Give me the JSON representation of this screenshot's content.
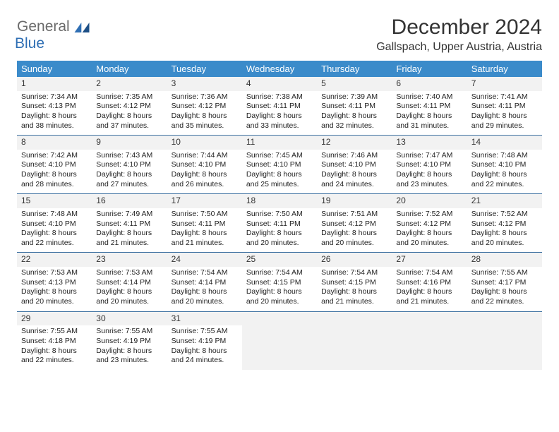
{
  "brand": {
    "part1": "General",
    "part2": "Blue"
  },
  "title": "December 2024",
  "location": "Gallspach, Upper Austria, Austria",
  "colors": {
    "header_bg": "#3b8bca",
    "header_text": "#ffffff",
    "row_border": "#3b6fa0",
    "daynum_bg": "#f2f2f2",
    "brand_gray": "#6b6b6b",
    "brand_blue": "#2f6fb4"
  },
  "weekdays": [
    "Sunday",
    "Monday",
    "Tuesday",
    "Wednesday",
    "Thursday",
    "Friday",
    "Saturday"
  ],
  "weeks": [
    [
      {
        "n": "1",
        "sr": "Sunrise: 7:34 AM",
        "ss": "Sunset: 4:13 PM",
        "d1": "Daylight: 8 hours",
        "d2": "and 38 minutes."
      },
      {
        "n": "2",
        "sr": "Sunrise: 7:35 AM",
        "ss": "Sunset: 4:12 PM",
        "d1": "Daylight: 8 hours",
        "d2": "and 37 minutes."
      },
      {
        "n": "3",
        "sr": "Sunrise: 7:36 AM",
        "ss": "Sunset: 4:12 PM",
        "d1": "Daylight: 8 hours",
        "d2": "and 35 minutes."
      },
      {
        "n": "4",
        "sr": "Sunrise: 7:38 AM",
        "ss": "Sunset: 4:11 PM",
        "d1": "Daylight: 8 hours",
        "d2": "and 33 minutes."
      },
      {
        "n": "5",
        "sr": "Sunrise: 7:39 AM",
        "ss": "Sunset: 4:11 PM",
        "d1": "Daylight: 8 hours",
        "d2": "and 32 minutes."
      },
      {
        "n": "6",
        "sr": "Sunrise: 7:40 AM",
        "ss": "Sunset: 4:11 PM",
        "d1": "Daylight: 8 hours",
        "d2": "and 31 minutes."
      },
      {
        "n": "7",
        "sr": "Sunrise: 7:41 AM",
        "ss": "Sunset: 4:11 PM",
        "d1": "Daylight: 8 hours",
        "d2": "and 29 minutes."
      }
    ],
    [
      {
        "n": "8",
        "sr": "Sunrise: 7:42 AM",
        "ss": "Sunset: 4:10 PM",
        "d1": "Daylight: 8 hours",
        "d2": "and 28 minutes."
      },
      {
        "n": "9",
        "sr": "Sunrise: 7:43 AM",
        "ss": "Sunset: 4:10 PM",
        "d1": "Daylight: 8 hours",
        "d2": "and 27 minutes."
      },
      {
        "n": "10",
        "sr": "Sunrise: 7:44 AM",
        "ss": "Sunset: 4:10 PM",
        "d1": "Daylight: 8 hours",
        "d2": "and 26 minutes."
      },
      {
        "n": "11",
        "sr": "Sunrise: 7:45 AM",
        "ss": "Sunset: 4:10 PM",
        "d1": "Daylight: 8 hours",
        "d2": "and 25 minutes."
      },
      {
        "n": "12",
        "sr": "Sunrise: 7:46 AM",
        "ss": "Sunset: 4:10 PM",
        "d1": "Daylight: 8 hours",
        "d2": "and 24 minutes."
      },
      {
        "n": "13",
        "sr": "Sunrise: 7:47 AM",
        "ss": "Sunset: 4:10 PM",
        "d1": "Daylight: 8 hours",
        "d2": "and 23 minutes."
      },
      {
        "n": "14",
        "sr": "Sunrise: 7:48 AM",
        "ss": "Sunset: 4:10 PM",
        "d1": "Daylight: 8 hours",
        "d2": "and 22 minutes."
      }
    ],
    [
      {
        "n": "15",
        "sr": "Sunrise: 7:48 AM",
        "ss": "Sunset: 4:10 PM",
        "d1": "Daylight: 8 hours",
        "d2": "and 22 minutes."
      },
      {
        "n": "16",
        "sr": "Sunrise: 7:49 AM",
        "ss": "Sunset: 4:11 PM",
        "d1": "Daylight: 8 hours",
        "d2": "and 21 minutes."
      },
      {
        "n": "17",
        "sr": "Sunrise: 7:50 AM",
        "ss": "Sunset: 4:11 PM",
        "d1": "Daylight: 8 hours",
        "d2": "and 21 minutes."
      },
      {
        "n": "18",
        "sr": "Sunrise: 7:50 AM",
        "ss": "Sunset: 4:11 PM",
        "d1": "Daylight: 8 hours",
        "d2": "and 20 minutes."
      },
      {
        "n": "19",
        "sr": "Sunrise: 7:51 AM",
        "ss": "Sunset: 4:12 PM",
        "d1": "Daylight: 8 hours",
        "d2": "and 20 minutes."
      },
      {
        "n": "20",
        "sr": "Sunrise: 7:52 AM",
        "ss": "Sunset: 4:12 PM",
        "d1": "Daylight: 8 hours",
        "d2": "and 20 minutes."
      },
      {
        "n": "21",
        "sr": "Sunrise: 7:52 AM",
        "ss": "Sunset: 4:12 PM",
        "d1": "Daylight: 8 hours",
        "d2": "and 20 minutes."
      }
    ],
    [
      {
        "n": "22",
        "sr": "Sunrise: 7:53 AM",
        "ss": "Sunset: 4:13 PM",
        "d1": "Daylight: 8 hours",
        "d2": "and 20 minutes."
      },
      {
        "n": "23",
        "sr": "Sunrise: 7:53 AM",
        "ss": "Sunset: 4:14 PM",
        "d1": "Daylight: 8 hours",
        "d2": "and 20 minutes."
      },
      {
        "n": "24",
        "sr": "Sunrise: 7:54 AM",
        "ss": "Sunset: 4:14 PM",
        "d1": "Daylight: 8 hours",
        "d2": "and 20 minutes."
      },
      {
        "n": "25",
        "sr": "Sunrise: 7:54 AM",
        "ss": "Sunset: 4:15 PM",
        "d1": "Daylight: 8 hours",
        "d2": "and 20 minutes."
      },
      {
        "n": "26",
        "sr": "Sunrise: 7:54 AM",
        "ss": "Sunset: 4:15 PM",
        "d1": "Daylight: 8 hours",
        "d2": "and 21 minutes."
      },
      {
        "n": "27",
        "sr": "Sunrise: 7:54 AM",
        "ss": "Sunset: 4:16 PM",
        "d1": "Daylight: 8 hours",
        "d2": "and 21 minutes."
      },
      {
        "n": "28",
        "sr": "Sunrise: 7:55 AM",
        "ss": "Sunset: 4:17 PM",
        "d1": "Daylight: 8 hours",
        "d2": "and 22 minutes."
      }
    ],
    [
      {
        "n": "29",
        "sr": "Sunrise: 7:55 AM",
        "ss": "Sunset: 4:18 PM",
        "d1": "Daylight: 8 hours",
        "d2": "and 22 minutes."
      },
      {
        "n": "30",
        "sr": "Sunrise: 7:55 AM",
        "ss": "Sunset: 4:19 PM",
        "d1": "Daylight: 8 hours",
        "d2": "and 23 minutes."
      },
      {
        "n": "31",
        "sr": "Sunrise: 7:55 AM",
        "ss": "Sunset: 4:19 PM",
        "d1": "Daylight: 8 hours",
        "d2": "and 24 minutes."
      },
      null,
      null,
      null,
      null
    ]
  ]
}
